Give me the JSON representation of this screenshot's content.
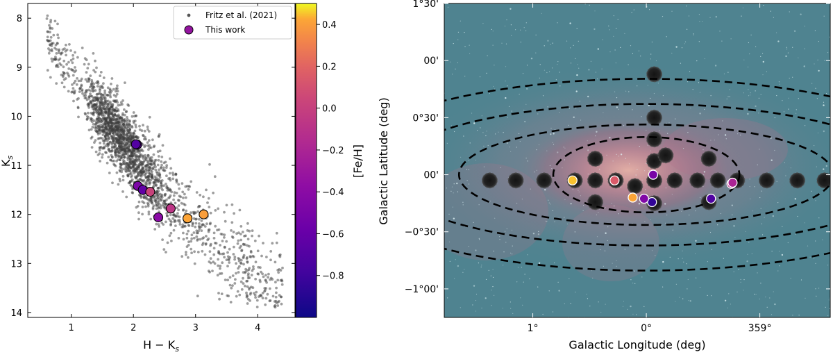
{
  "chart_data": [
    {
      "type": "scatter",
      "xlabel": "H − K",
      "xlabel_sub": "s",
      "ylabel": "K",
      "ylabel_sub": "s",
      "xlim": [
        0.3,
        4.6
      ],
      "ylim": [
        14.1,
        7.7
      ],
      "y_inverted": true,
      "x_ticks": [
        1,
        2,
        3,
        4
      ],
      "x_tick_labels": [
        "1",
        "2",
        "3",
        "4"
      ],
      "y_ticks": [
        8,
        9,
        10,
        11,
        12,
        13,
        14
      ],
      "y_tick_labels": [
        "8",
        "9",
        "10",
        "11",
        "12",
        "13",
        "14"
      ],
      "legend_position": "top-right",
      "legend": [
        "Fritz et al. (2021)",
        "This work"
      ],
      "background_cloud": {
        "name": "Fritz et al. (2021)",
        "color": "#555555",
        "description_points_approx": 2200,
        "band_ridge": [
          [
            0.7,
            8.6
          ],
          [
            1.5,
            10.0
          ],
          [
            2.5,
            11.6
          ],
          [
            3.5,
            12.9
          ],
          [
            4.4,
            13.6
          ]
        ]
      },
      "series": [
        {
          "name": "This work",
          "points": [
            {
              "x": 2.06,
              "y": 10.58,
              "feh": -0.62
            },
            {
              "x": 2.04,
              "y": 10.57,
              "feh": -0.7
            },
            {
              "x": 2.07,
              "y": 11.42,
              "feh": -0.48
            },
            {
              "x": 2.15,
              "y": 11.5,
              "feh": -0.62
            },
            {
              "x": 2.27,
              "y": 11.54,
              "feh": 0.02
            },
            {
              "x": 2.4,
              "y": 12.06,
              "feh": -0.4
            },
            {
              "x": 2.6,
              "y": 11.88,
              "feh": -0.07
            },
            {
              "x": 2.87,
              "y": 12.08,
              "feh": 0.42
            },
            {
              "x": 3.13,
              "y": 12.0,
              "feh": 0.4
            }
          ]
        }
      ],
      "colorbar": {
        "label": "[Fe/H]",
        "cmap": "plasma",
        "range": [
          -1.0,
          0.5
        ],
        "ticks": [
          0.4,
          0.2,
          0.0,
          -0.2,
          -0.4,
          -0.6,
          -0.8
        ],
        "tick_labels": [
          "0.4",
          "0.2",
          "0.0",
          "−0.2",
          "−0.4",
          "−0.6",
          "−0.8"
        ]
      }
    },
    {
      "type": "scatter",
      "xlabel": "Galactic Longitude (deg)",
      "ylabel": "Galactic Latitude (deg)",
      "xlim": [
        1.78,
        -1.62
      ],
      "ylim": [
        -1.25,
        1.5
      ],
      "x_ticks": [
        1.0,
        0.0,
        -1.0
      ],
      "x_tick_labels": [
        "1°",
        "0°",
        "359°"
      ],
      "y_ticks": [
        1.5,
        1.0,
        0.5,
        0.0,
        -0.5,
        -1.0
      ],
      "y_tick_labels": [
        "1°30'",
        "00'",
        "0°30'",
        "00'",
        "−0°30'",
        "−1°00'"
      ],
      "background": "infrared sky image of the Galactic Center",
      "fields": {
        "name": "observed fields",
        "points": [
          {
            "l": 1.38,
            "b": -0.05
          },
          {
            "l": 1.15,
            "b": -0.05
          },
          {
            "l": 0.9,
            "b": -0.05
          },
          {
            "l": 0.63,
            "b": -0.05
          },
          {
            "l": 0.45,
            "b": -0.05
          },
          {
            "l": 0.27,
            "b": -0.05
          },
          {
            "l": 0.1,
            "b": -0.1
          },
          {
            "l": -0.07,
            "b": -0.05
          },
          {
            "l": -0.25,
            "b": -0.05
          },
          {
            "l": -0.45,
            "b": -0.05
          },
          {
            "l": -0.63,
            "b": -0.05
          },
          {
            "l": -0.8,
            "b": -0.05
          },
          {
            "l": -1.06,
            "b": -0.05
          },
          {
            "l": -1.33,
            "b": -0.05
          },
          {
            "l": -1.57,
            "b": -0.05
          },
          {
            "l": 0.45,
            "b": 0.14
          },
          {
            "l": 0.45,
            "b": -0.24
          },
          {
            "l": -0.55,
            "b": 0.14
          },
          {
            "l": -0.55,
            "b": -0.24
          },
          {
            "l": -0.07,
            "b": 0.88
          },
          {
            "l": -0.07,
            "b": 0.5
          },
          {
            "l": -0.07,
            "b": 0.31
          },
          {
            "l": -0.07,
            "b": 0.12
          },
          {
            "l": -0.07,
            "b": -0.25
          },
          {
            "l": -0.17,
            "b": 0.17
          }
        ]
      },
      "ellipses": [
        {
          "center_l": 0.0,
          "center_b": 0.0,
          "semi_l": 0.82,
          "semi_b": 0.33
        },
        {
          "center_l": 0.0,
          "center_b": 0.0,
          "semi_l": 1.65,
          "semi_b": 0.44
        },
        {
          "center_l": 0.0,
          "center_b": 0.0,
          "semi_l": 2.3,
          "semi_b": 0.62
        },
        {
          "center_l": 0.0,
          "center_b": 0.0,
          "semi_l": 2.8,
          "semi_b": 0.84
        }
      ],
      "series": [
        {
          "name": "This work",
          "points": [
            {
              "l": -0.75,
              "b": -0.08,
              "feh": -0.08
            },
            {
              "l": -0.76,
              "b": -0.07,
              "feh": -0.2
            },
            {
              "l": -0.57,
              "b": -0.21,
              "feh": -0.72
            },
            {
              "l": -0.06,
              "b": 0.0,
              "feh": -0.5
            },
            {
              "l": -0.05,
              "b": -0.24,
              "feh": -0.85
            },
            {
              "l": 0.02,
              "b": -0.21,
              "feh": -0.45
            },
            {
              "l": 0.12,
              "b": -0.2,
              "feh": 0.42
            },
            {
              "l": 0.28,
              "b": -0.05,
              "feh": 0.15
            },
            {
              "l": 0.65,
              "b": -0.05,
              "feh": 0.45
            }
          ]
        }
      ]
    }
  ]
}
